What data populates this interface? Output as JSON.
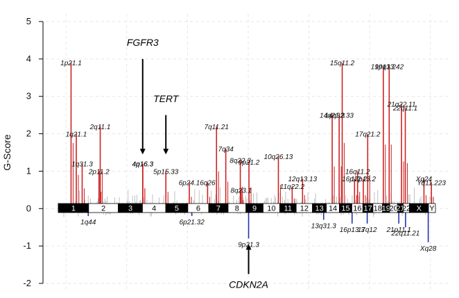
{
  "chart_data": {
    "type": "bar",
    "ylabel": "G-Score",
    "ylim": [
      -2,
      5
    ],
    "yticks": [
      -2,
      -1,
      0,
      1,
      2,
      3,
      4,
      5
    ],
    "grid": true,
    "colors": {
      "amplification": "#cc2222",
      "deletion": "#2233aa",
      "background": "#b0b0b0",
      "chromosome_dark": "#000000",
      "chromosome_light": "#ffffff"
    },
    "chromosomes": [
      "1",
      "2",
      "3",
      "4",
      "5",
      "6",
      "7",
      "8",
      "9",
      "10",
      "11",
      "12",
      "13",
      "14",
      "15",
      "16",
      "17",
      "18",
      "19",
      "20",
      "21",
      "22",
      "X",
      "Y"
    ],
    "chromosome_lengths_mb": [
      249,
      243,
      198,
      191,
      181,
      171,
      159,
      146,
      141,
      136,
      135,
      133,
      114,
      107,
      102,
      90,
      83,
      78,
      59,
      64,
      47,
      51,
      156,
      57
    ],
    "amplification_peaks": [
      {
        "label": "1p21.1",
        "chr": "1",
        "pos": 105,
        "value": 3.9
      },
      {
        "label": "1q21.1",
        "chr": "1",
        "pos": 148,
        "value": 2.0
      },
      {
        "label": "1q31.3",
        "chr": "1",
        "pos": 196,
        "value": 1.2
      },
      {
        "label": "2q11.1",
        "chr": "2",
        "pos": 95,
        "value": 2.2
      },
      {
        "label": "2p11.2",
        "chr": "2",
        "pos": 85,
        "value": 1.0
      },
      {
        "label": "4q16.3",
        "chr": "4",
        "pos": 2,
        "value": 1.2
      },
      {
        "label": "4p16.3",
        "chr": "4",
        "pos": 3,
        "value": 1.2
      },
      {
        "label": "5p15.33",
        "chr": "5",
        "pos": 1,
        "value": 1.0
      },
      {
        "label": "6p24.1",
        "chr": "6",
        "pos": 12,
        "value": 0.7
      },
      {
        "label": "6q26",
        "chr": "6",
        "pos": 162,
        "value": 0.7
      },
      {
        "label": "7q11.21",
        "chr": "7",
        "pos": 64,
        "value": 2.2
      },
      {
        "label": "7q34",
        "chr": "7",
        "pos": 140,
        "value": 1.6
      },
      {
        "label": "8q23.1",
        "chr": "8",
        "pos": 107,
        "value": 0.5
      },
      {
        "label": "8q22.3",
        "chr": "8",
        "pos": 100,
        "value": 1.3
      },
      {
        "label": "9p21.2",
        "chr": "9",
        "pos": 25,
        "value": 1.25
      },
      {
        "label": "10q26.13",
        "chr": "10",
        "pos": 125,
        "value": 1.4
      },
      {
        "label": "11q22.2",
        "chr": "11",
        "pos": 102,
        "value": 0.6
      },
      {
        "label": "12q13.13",
        "chr": "12",
        "pos": 52,
        "value": 0.8
      },
      {
        "label": "14q32.33",
        "chr": "14",
        "pos": 105,
        "value": 2.5
      },
      {
        "label": "14q21.3",
        "chr": "14",
        "pos": 48,
        "value": 2.5
      },
      {
        "label": "15q11.2",
        "chr": "15",
        "pos": 23,
        "value": 3.9
      },
      {
        "label": "16q11.2",
        "chr": "16",
        "pos": 47,
        "value": 1.0
      },
      {
        "label": "16p12.2",
        "chr": "16",
        "pos": 22,
        "value": 0.8
      },
      {
        "label": "17q21.2",
        "chr": "17",
        "pos": 40,
        "value": 2.0
      },
      {
        "label": "17p13.2",
        "chr": "17",
        "pos": 4,
        "value": 0.8
      },
      {
        "label": "19q13.42",
        "chr": "19",
        "pos": 55,
        "value": 3.8
      },
      {
        "label": "19p13.2",
        "chr": "19",
        "pos": 7,
        "value": 3.8
      },
      {
        "label": "21q22.11",
        "chr": "21",
        "pos": 33,
        "value": 2.8
      },
      {
        "label": "22q11.1",
        "chr": "22",
        "pos": 17,
        "value": 2.7
      },
      {
        "label": "Xq24",
        "chr": "X",
        "pos": 119,
        "value": 0.8
      },
      {
        "label": "Yq11.223",
        "chr": "Y",
        "pos": 24,
        "value": 0.7
      }
    ],
    "deletion_peaks": [
      {
        "label": "1q44",
        "chr": "1",
        "pos": 246,
        "value": -0.2
      },
      {
        "label": "6p21.32",
        "chr": "6",
        "pos": 33,
        "value": -0.2
      },
      {
        "label": "9p21.3",
        "chr": "9",
        "pos": 22,
        "value": -0.8
      },
      {
        "label": "13q31.3",
        "chr": "13",
        "pos": 92,
        "value": -0.3
      },
      {
        "label": "16p13.3",
        "chr": "16",
        "pos": 2,
        "value": -0.4
      },
      {
        "label": "17q12",
        "chr": "17",
        "pos": 36,
        "value": -0.4
      },
      {
        "label": "21p11.1",
        "chr": "21",
        "pos": 11,
        "value": -0.4
      },
      {
        "label": "22q11.21",
        "chr": "22",
        "pos": 19,
        "value": -0.5
      },
      {
        "label": "Xq28",
        "chr": "X",
        "pos": 154,
        "value": -0.9
      }
    ],
    "annotations": [
      {
        "text": "FGFR3",
        "chr": "4",
        "pos": 2
      },
      {
        "text": "TERT",
        "chr": "5",
        "pos": 1
      },
      {
        "text": "CDKN2A",
        "chr": "9",
        "pos": 22
      }
    ]
  }
}
